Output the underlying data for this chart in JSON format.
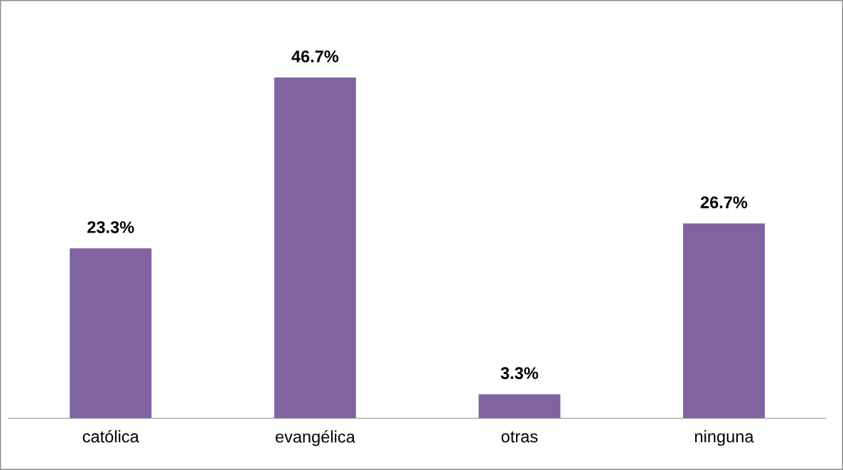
{
  "chart_data": {
    "type": "bar",
    "categories": [
      "católica",
      "evangélica",
      "otras",
      "ninguna"
    ],
    "values": [
      23.3,
      46.7,
      3.3,
      26.7
    ],
    "value_labels": [
      "23.3%",
      "46.7%",
      "3.3%",
      "26.7%"
    ],
    "color": "#8064a2",
    "grid": false,
    "legend": false
  }
}
